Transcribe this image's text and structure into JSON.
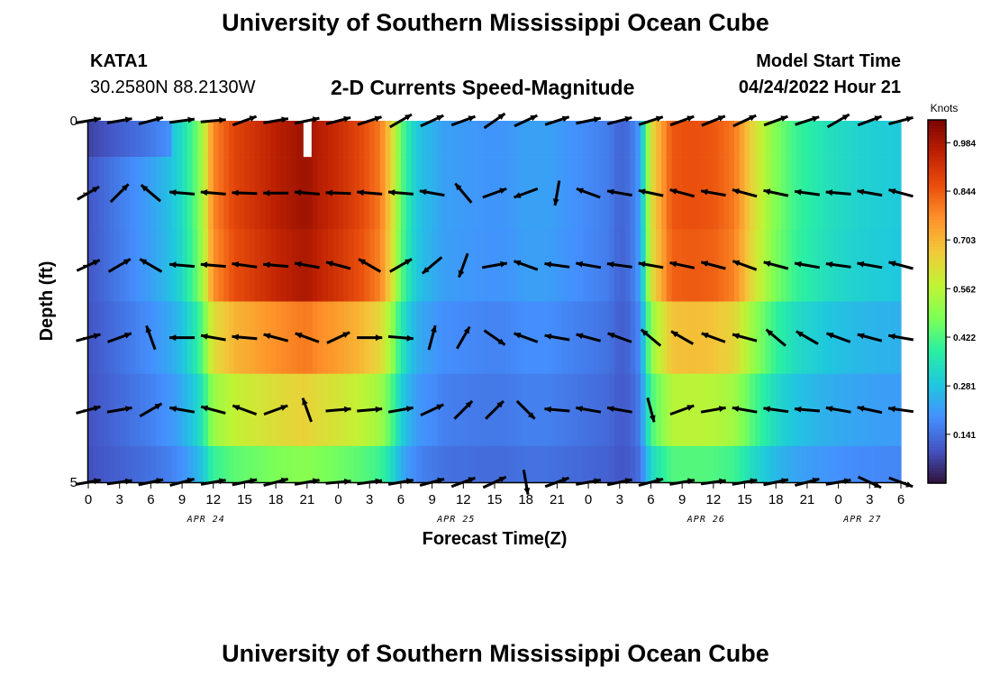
{
  "header": {
    "title": "University of Southern Mississippi Ocean Cube",
    "station": "KATA1",
    "coordinates": "30.2580N  88.2130W",
    "subtitle": "2-D Currents Speed-Magnitude",
    "model_start_label": "Model Start Time",
    "model_start_value": "04/24/2022 Hour 21"
  },
  "footer": {
    "title": "University of Southern Mississippi Ocean Cube"
  },
  "chart_data": {
    "type": "heatmap",
    "title": "2-D Currents Speed-Magnitude",
    "xlabel": "Forecast Time(Z)",
    "ylabel": "Depth (ft)",
    "x_tick_labels": [
      "0",
      "3",
      "6",
      "9",
      "12",
      "15",
      "18",
      "21",
      "0",
      "3",
      "6",
      "9",
      "12",
      "15",
      "18",
      "21",
      "0",
      "3",
      "6",
      "9",
      "12",
      "15",
      "18",
      "21",
      "0",
      "3",
      "6"
    ],
    "date_labels": [
      {
        "label": "APR 24",
        "tick_index": 4
      },
      {
        "label": "APR 25",
        "tick_index": 12
      },
      {
        "label": "APR 26",
        "tick_index": 20
      },
      {
        "label": "APR 27",
        "tick_index": 25
      }
    ],
    "y_tick_labels": [
      "0",
      "5"
    ],
    "ylim": [
      0,
      5
    ],
    "xlim_hours": [
      0,
      78
    ],
    "colorbar": {
      "title": "Knots",
      "ticks": [
        "0.984",
        "0.844",
        "0.703",
        "0.562",
        "0.422",
        "0.281",
        "0.141"
      ],
      "tick_values": [
        0.984,
        0.844,
        0.703,
        0.562,
        0.422,
        0.281,
        0.141
      ],
      "range": [
        0.0,
        1.05
      ],
      "colors": [
        "#30123b",
        "#4454c4",
        "#4490fe",
        "#1fc8de",
        "#29efa2",
        "#7dff56",
        "#c1f334",
        "#f1ca3a",
        "#fe922a",
        "#ea4f0d",
        "#be2102",
        "#7a0403"
      ]
    },
    "depth_levels": [
      0,
      1,
      2,
      3,
      4,
      5
    ],
    "speed_profile": {
      "hours": [
        0,
        2,
        4,
        6,
        8,
        9,
        9.8,
        10.5,
        11,
        12,
        14,
        16,
        18,
        20,
        21,
        22,
        24,
        26,
        28,
        29,
        30,
        31,
        32,
        33,
        34,
        36,
        38,
        40,
        42,
        44,
        46,
        48,
        50,
        51,
        52,
        53,
        54,
        56,
        58,
        60,
        62,
        64,
        66,
        68,
        70,
        72,
        74,
        76,
        78
      ],
      "speed": [
        0.1,
        0.14,
        0.18,
        0.22,
        0.28,
        0.33,
        0.4,
        0.46,
        0.55,
        0.78,
        0.88,
        0.92,
        0.96,
        0.99,
        1.0,
        0.97,
        0.93,
        0.88,
        0.8,
        0.66,
        0.45,
        0.33,
        0.27,
        0.25,
        0.22,
        0.21,
        0.2,
        0.2,
        0.22,
        0.22,
        0.2,
        0.18,
        0.16,
        0.12,
        0.14,
        0.22,
        0.62,
        0.85,
        0.86,
        0.85,
        0.8,
        0.62,
        0.48,
        0.4,
        0.36,
        0.33,
        0.31,
        0.3,
        0.29
      ]
    },
    "depth_factors": [
      1.0,
      1.0,
      0.98,
      0.78,
      0.62,
      0.45
    ],
    "missing_cell": {
      "hour": 21,
      "depth": 0
    },
    "vectors": [
      {
        "depth": 0,
        "hour": 0,
        "dir": 0
      }
    ]
  }
}
